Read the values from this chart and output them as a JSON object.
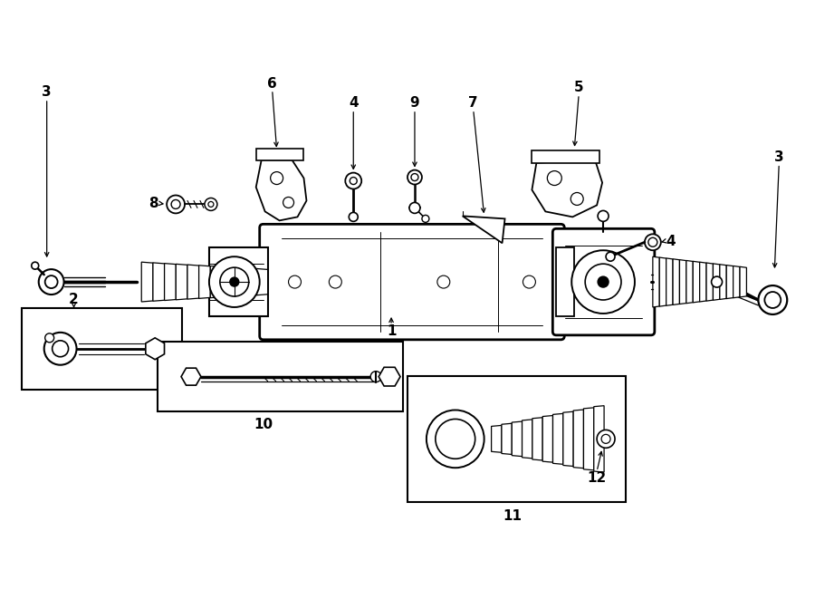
{
  "background_color": "#ffffff",
  "line_color": "#000000",
  "fig_width": 9.0,
  "fig_height": 6.61
}
